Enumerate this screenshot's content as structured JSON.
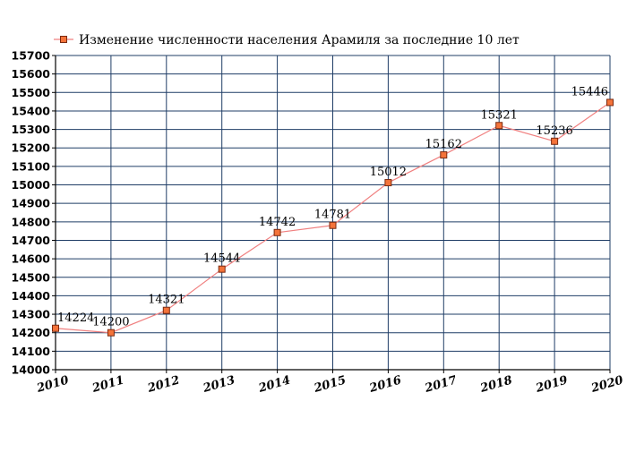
{
  "chart_data": {
    "type": "line",
    "legend": "Изменение численности населения Арамиля за последние 10 лет",
    "legend_position": "top-left",
    "x": [
      "2010",
      "2011",
      "2012",
      "2013",
      "2014",
      "2015",
      "2016",
      "2017",
      "2018",
      "2019",
      "2020"
    ],
    "values": [
      14224,
      14200,
      14321,
      14544,
      14742,
      14781,
      15012,
      15162,
      15321,
      15236,
      15446
    ],
    "data_labels": [
      "14224",
      "14200",
      "14321",
      "14544",
      "14742",
      "14781",
      "15012",
      "15162",
      "15321",
      "15236",
      "15446"
    ],
    "ylim": [
      14000,
      15700
    ],
    "ytick_step": 100,
    "yticks": [
      "14000",
      "14100",
      "14200",
      "14300",
      "14400",
      "14500",
      "14600",
      "14700",
      "14800",
      "14900",
      "15000",
      "15100",
      "15200",
      "15300",
      "15400",
      "15500",
      "15600",
      "15700"
    ],
    "grid": true,
    "colors": {
      "line": "#f08080",
      "marker_fill": "#f4733a",
      "marker_edge": "#7a2a10",
      "grid": "#1f3d66",
      "axis": "#000000"
    }
  }
}
